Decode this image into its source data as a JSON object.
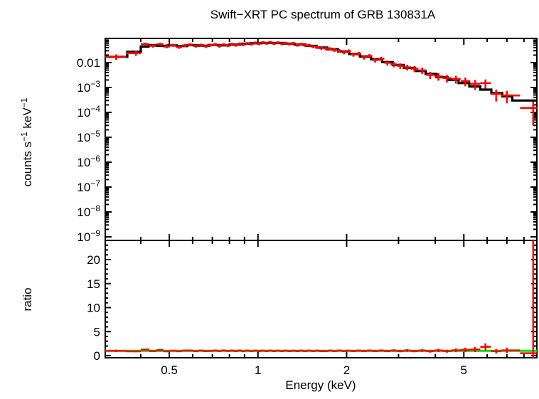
{
  "title": "Swift−XRT PC spectrum of GRB 130831A",
  "colors": {
    "data": "#ff0000",
    "model": "#000000",
    "unity_line": "#00e000",
    "frame": "#000000",
    "background": "#ffffff"
  },
  "chart_data": {
    "type": "line",
    "title": "Swift−XRT PC spectrum of GRB 130831A",
    "xlabel": "Energy (keV)",
    "xscale": "log",
    "xlim": [
      0.303,
      8.85
    ],
    "xticks_major": [
      0.5,
      1,
      2,
      5
    ],
    "xtick_labels": [
      "0.5",
      "1",
      "2",
      "5"
    ],
    "xticks_minor": [
      0.4,
      0.6,
      0.7,
      0.8,
      0.9,
      3,
      4,
      6,
      7,
      8
    ],
    "legend": "none",
    "grid": false,
    "panels": [
      {
        "name": "spectrum",
        "ylabel_parts": [
          {
            "t": "counts s"
          },
          {
            "t": "−1",
            "sup": true
          },
          {
            "t": " keV"
          },
          {
            "t": "−1",
            "sup": true
          }
        ],
        "yscale": "log",
        "ylim": [
          7.2e-10,
          0.0935
        ],
        "yticks": [
          {
            "v": 0.01,
            "label": "0.01"
          },
          {
            "v": 0.001,
            "base": "10",
            "exp": "−3"
          },
          {
            "v": 0.0001,
            "base": "10",
            "exp": "−4"
          },
          {
            "v": 1e-05,
            "base": "10",
            "exp": "−5"
          },
          {
            "v": 1e-06,
            "base": "10",
            "exp": "−6"
          },
          {
            "v": 1e-07,
            "base": "10",
            "exp": "−7"
          },
          {
            "v": 1e-08,
            "base": "10",
            "exp": "−8"
          },
          {
            "v": 1e-09,
            "base": "10",
            "exp": "−9"
          }
        ],
        "model_step": {
          "edges": [
            0.303,
            0.36,
            0.4,
            0.425,
            0.455,
            0.49,
            0.53,
            0.575,
            0.625,
            0.68,
            0.74,
            0.8,
            0.87,
            0.945,
            1.03,
            1.12,
            1.22,
            1.33,
            1.45,
            1.58,
            1.72,
            1.87,
            2.04,
            2.22,
            2.42,
            2.64,
            2.87,
            3.13,
            3.41,
            3.71,
            4.04,
            4.4,
            4.8,
            5.22,
            5.69,
            6.2,
            6.75,
            7.3,
            8.85
          ],
          "values": [
            0.017,
            0.027,
            0.044,
            0.05,
            0.047,
            0.049,
            0.046,
            0.05,
            0.048,
            0.051,
            0.049,
            0.053,
            0.057,
            0.06,
            0.062,
            0.061,
            0.058,
            0.053,
            0.047,
            0.04,
            0.034,
            0.028,
            0.022,
            0.0175,
            0.0135,
            0.0105,
            0.008,
            0.0061,
            0.0046,
            0.0035,
            0.0026,
            0.002,
            0.0015,
            0.0011,
            0.00082,
            0.0006,
            0.00044,
            0.0003
          ]
        },
        "points_format": [
          "energy_keV",
          "rate_counts_s_keV",
          "relative_error",
          "ratio_error_override"
        ],
        "points": [
          [
            0.33,
            0.017,
            0.25
          ],
          [
            0.385,
            0.024,
            0.22
          ],
          [
            0.415,
            0.055,
            0.15
          ],
          [
            0.44,
            0.047,
            0.15
          ],
          [
            0.465,
            0.055,
            0.14
          ],
          [
            0.49,
            0.044,
            0.15
          ],
          [
            0.515,
            0.05,
            0.14
          ],
          [
            0.54,
            0.042,
            0.15
          ],
          [
            0.565,
            0.049,
            0.14
          ],
          [
            0.59,
            0.053,
            0.13
          ],
          [
            0.615,
            0.046,
            0.14
          ],
          [
            0.64,
            0.051,
            0.13
          ],
          [
            0.665,
            0.045,
            0.14
          ],
          [
            0.69,
            0.05,
            0.13
          ],
          [
            0.715,
            0.054,
            0.13
          ],
          [
            0.74,
            0.046,
            0.14
          ],
          [
            0.765,
            0.053,
            0.13
          ],
          [
            0.79,
            0.048,
            0.13
          ],
          [
            0.815,
            0.056,
            0.12
          ],
          [
            0.84,
            0.05,
            0.13
          ],
          [
            0.865,
            0.057,
            0.12
          ],
          [
            0.89,
            0.052,
            0.13
          ],
          [
            0.92,
            0.06,
            0.12
          ],
          [
            0.95,
            0.055,
            0.12
          ],
          [
            0.98,
            0.063,
            0.12
          ],
          [
            1.01,
            0.057,
            0.12
          ],
          [
            1.04,
            0.065,
            0.12
          ],
          [
            1.07,
            0.059,
            0.12
          ],
          [
            1.1,
            0.066,
            0.12
          ],
          [
            1.135,
            0.058,
            0.12
          ],
          [
            1.17,
            0.064,
            0.12
          ],
          [
            1.205,
            0.057,
            0.13
          ],
          [
            1.24,
            0.061,
            0.12
          ],
          [
            1.28,
            0.055,
            0.13
          ],
          [
            1.32,
            0.06,
            0.12
          ],
          [
            1.36,
            0.05,
            0.13
          ],
          [
            1.4,
            0.056,
            0.13
          ],
          [
            1.445,
            0.049,
            0.13
          ],
          [
            1.49,
            0.05,
            0.14
          ],
          [
            1.54,
            0.044,
            0.14
          ],
          [
            1.59,
            0.042,
            0.15
          ],
          [
            1.64,
            0.038,
            0.15
          ],
          [
            1.7,
            0.037,
            0.15
          ],
          [
            1.76,
            0.036,
            0.15
          ],
          [
            1.82,
            0.032,
            0.16
          ],
          [
            1.89,
            0.03,
            0.16
          ],
          [
            1.96,
            0.026,
            0.17
          ],
          [
            2.03,
            0.029,
            0.17
          ],
          [
            2.11,
            0.021,
            0.18
          ],
          [
            2.2,
            0.023,
            0.18
          ],
          [
            2.29,
            0.0165,
            0.2
          ],
          [
            2.39,
            0.0185,
            0.19
          ],
          [
            2.5,
            0.0127,
            0.21
          ],
          [
            2.62,
            0.0143,
            0.2
          ],
          [
            2.75,
            0.0098,
            0.23
          ],
          [
            2.89,
            0.0085,
            0.24
          ],
          [
            3.04,
            0.0074,
            0.25
          ],
          [
            3.21,
            0.0065,
            0.26
          ],
          [
            3.4,
            0.0057,
            0.27
          ],
          [
            3.61,
            0.0049,
            0.28
          ],
          [
            3.84,
            0.0032,
            0.32
          ],
          [
            4.1,
            0.0028,
            0.33
          ],
          [
            4.38,
            0.0024,
            0.34
          ],
          [
            4.7,
            0.0022,
            0.35
          ],
          [
            5.06,
            0.0018,
            0.38
          ],
          [
            5.46,
            0.0014,
            0.42
          ],
          [
            5.92,
            0.0015,
            0.4
          ],
          [
            6.44,
            0.00055,
            0.5
          ],
          [
            7.0,
            0.00048,
            0.52
          ],
          [
            8.6,
            0.00015,
            0.8,
            99
          ]
        ]
      },
      {
        "name": "ratio",
        "ylabel": "ratio",
        "yscale": "linear",
        "ylim": [
          -0.44,
          24.0
        ],
        "yticks": [
          0,
          5,
          10,
          15,
          20
        ],
        "ytick_minor_step": 1,
        "reference_line": 1.0
      }
    ]
  }
}
